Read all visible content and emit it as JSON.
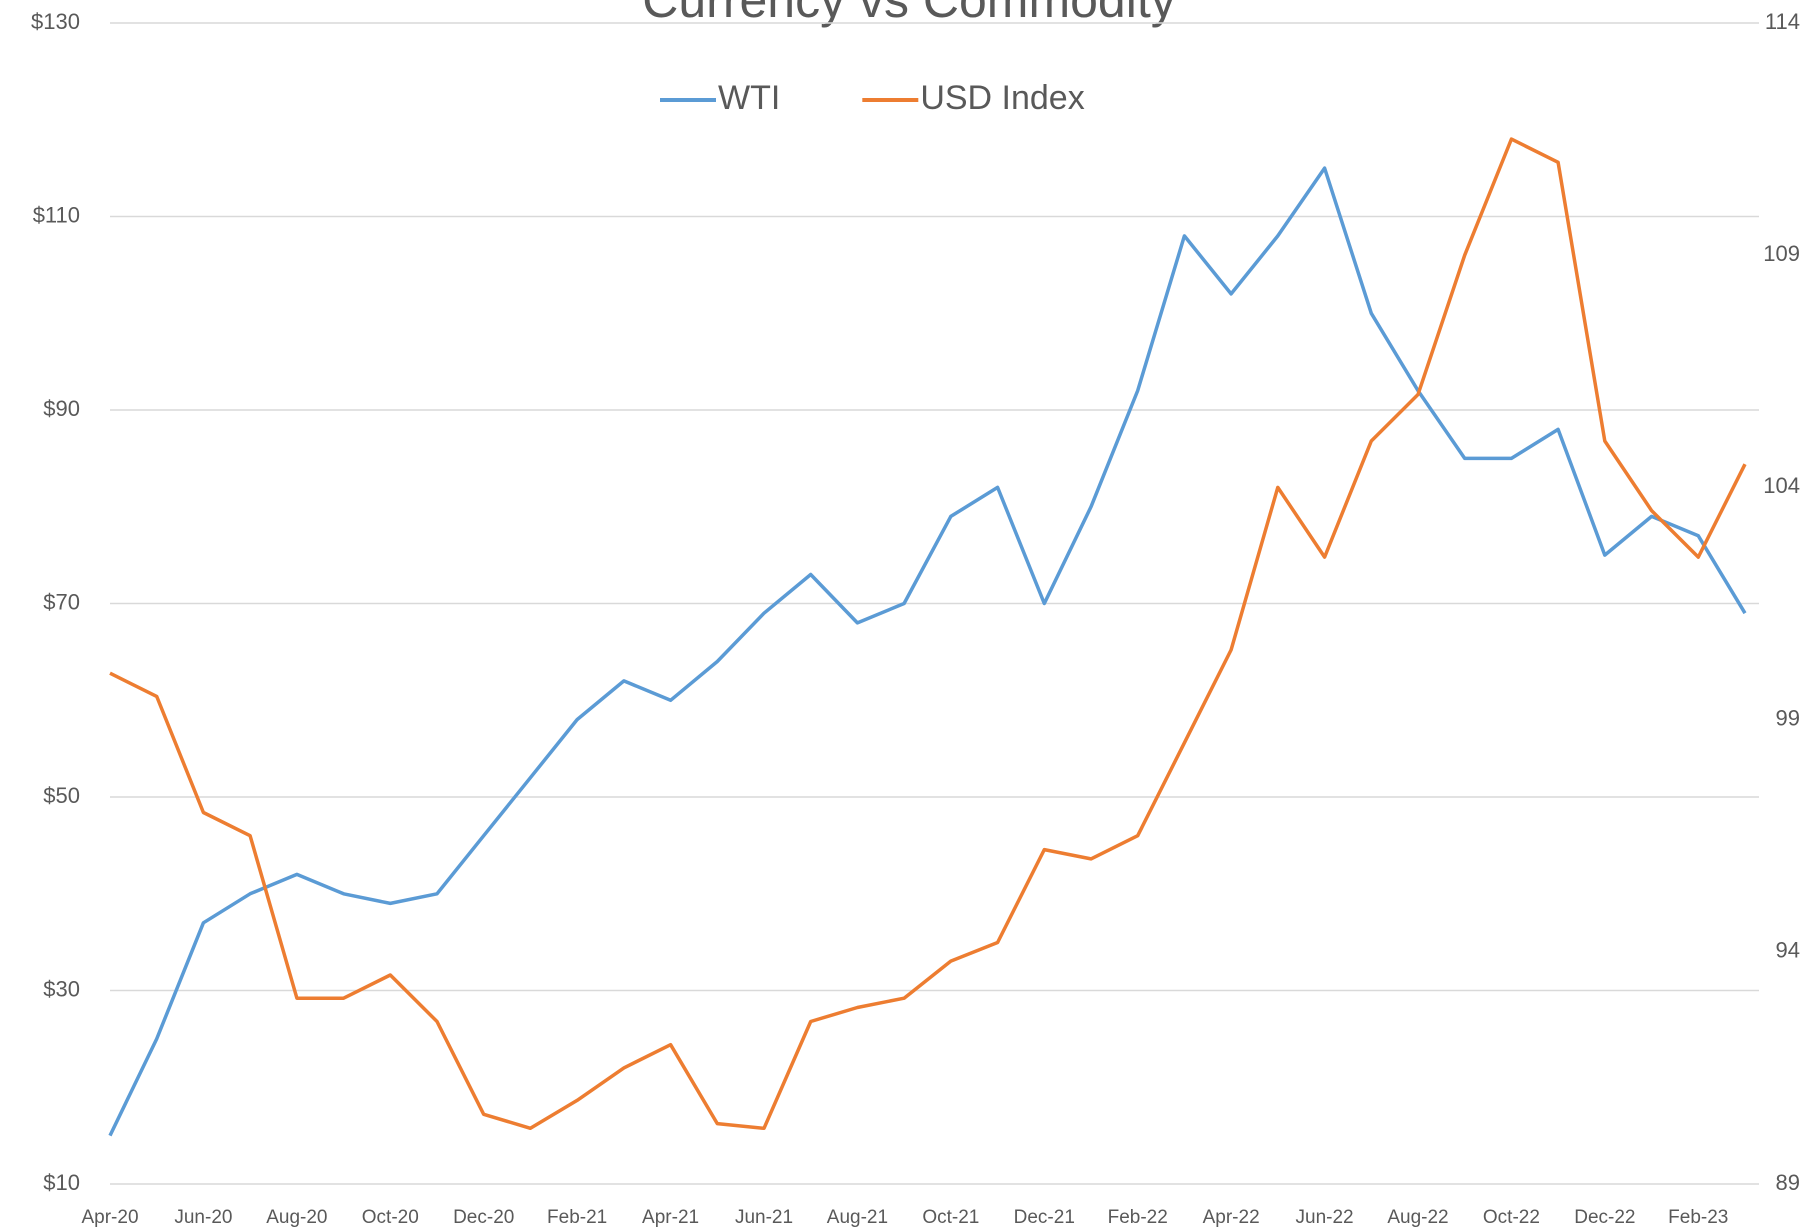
{
  "chart_data": {
    "type": "line",
    "title": "Currency vs Commodity",
    "categories": [
      "Apr-20",
      null,
      "Jun-20",
      null,
      "Aug-20",
      null,
      "Oct-20",
      null,
      "Dec-20",
      null,
      "Feb-21",
      null,
      "Apr-21",
      null,
      "Jun-21",
      null,
      "Aug-21",
      null,
      "Oct-21",
      null,
      "Dec-21",
      null,
      "Feb-22",
      null,
      "Apr-22",
      null,
      "Jun-22",
      null,
      "Aug-22",
      null,
      "Oct-22",
      null,
      "Dec-22",
      null,
      "Feb-23",
      null
    ],
    "series": [
      {
        "name": "WTI",
        "color": "#5b9bd5",
        "axis": "y",
        "values": [
          15,
          25,
          37,
          40,
          42,
          40,
          39,
          40,
          46,
          52,
          58,
          62,
          60,
          64,
          69,
          73,
          68,
          70,
          79,
          82,
          70,
          80,
          92,
          108,
          102,
          108,
          115,
          100,
          92,
          85,
          85,
          88,
          75,
          79,
          77,
          69
        ]
      },
      {
        "name": "USD Index",
        "color": "#ed7d31",
        "axis": "y2",
        "values": [
          100,
          99.5,
          97,
          96.5,
          93,
          93,
          93.5,
          92.5,
          90.5,
          90.2,
          90.8,
          91.5,
          92,
          90.3,
          90.2,
          92.5,
          92.8,
          93,
          93.8,
          94.2,
          96.2,
          96,
          96.5,
          98.5,
          100.5,
          104,
          102.5,
          105,
          106,
          109,
          111.5,
          111,
          105,
          103.5,
          102.5,
          104.5
        ]
      }
    ],
    "ylim": [
      10,
      130
    ],
    "yticks": [
      {
        "value": 10,
        "label": "$10"
      },
      {
        "value": 30,
        "label": "$30"
      },
      {
        "value": 50,
        "label": "$50"
      },
      {
        "value": 70,
        "label": "$70"
      },
      {
        "value": 90,
        "label": "$90"
      },
      {
        "value": 110,
        "label": "$110"
      },
      {
        "value": 130,
        "label": "$130"
      }
    ],
    "y2lim": [
      89,
      114
    ],
    "y2ticks": [
      89,
      94,
      99,
      104,
      109,
      114
    ],
    "grid": true,
    "legend": "top"
  }
}
